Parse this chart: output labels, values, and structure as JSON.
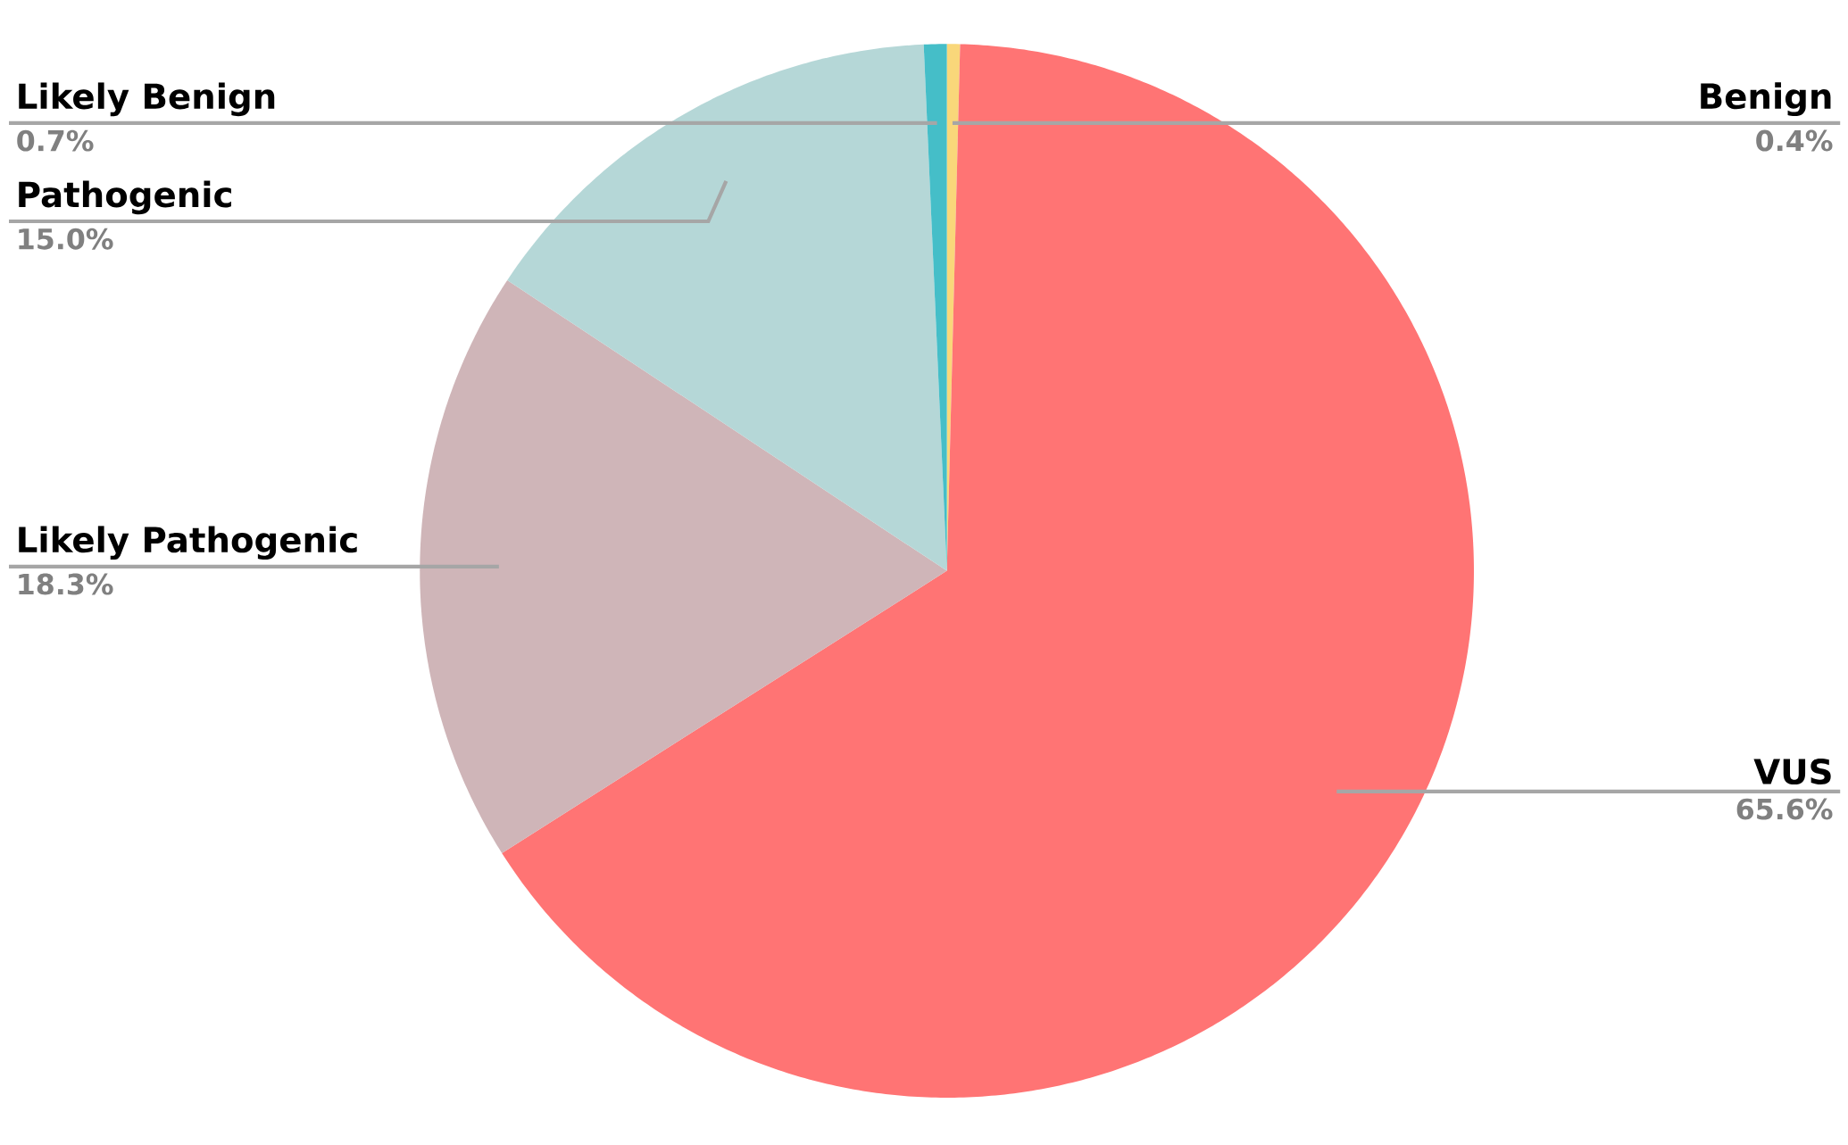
{
  "chart_data": {
    "type": "pie",
    "categories": [
      "Benign",
      "VUS",
      "Likely Pathogenic",
      "Pathogenic",
      "Likely Benign"
    ],
    "values": [
      0.4,
      65.6,
      18.3,
      15.0,
      0.7
    ],
    "value_labels": [
      "0.4%",
      "65.6%",
      "18.3%",
      "15.0%",
      "0.7%"
    ],
    "colors": [
      "#f9d77a",
      "#ff7474",
      "#cfb5b8",
      "#b5d7d7",
      "#45bec8"
    ]
  }
}
